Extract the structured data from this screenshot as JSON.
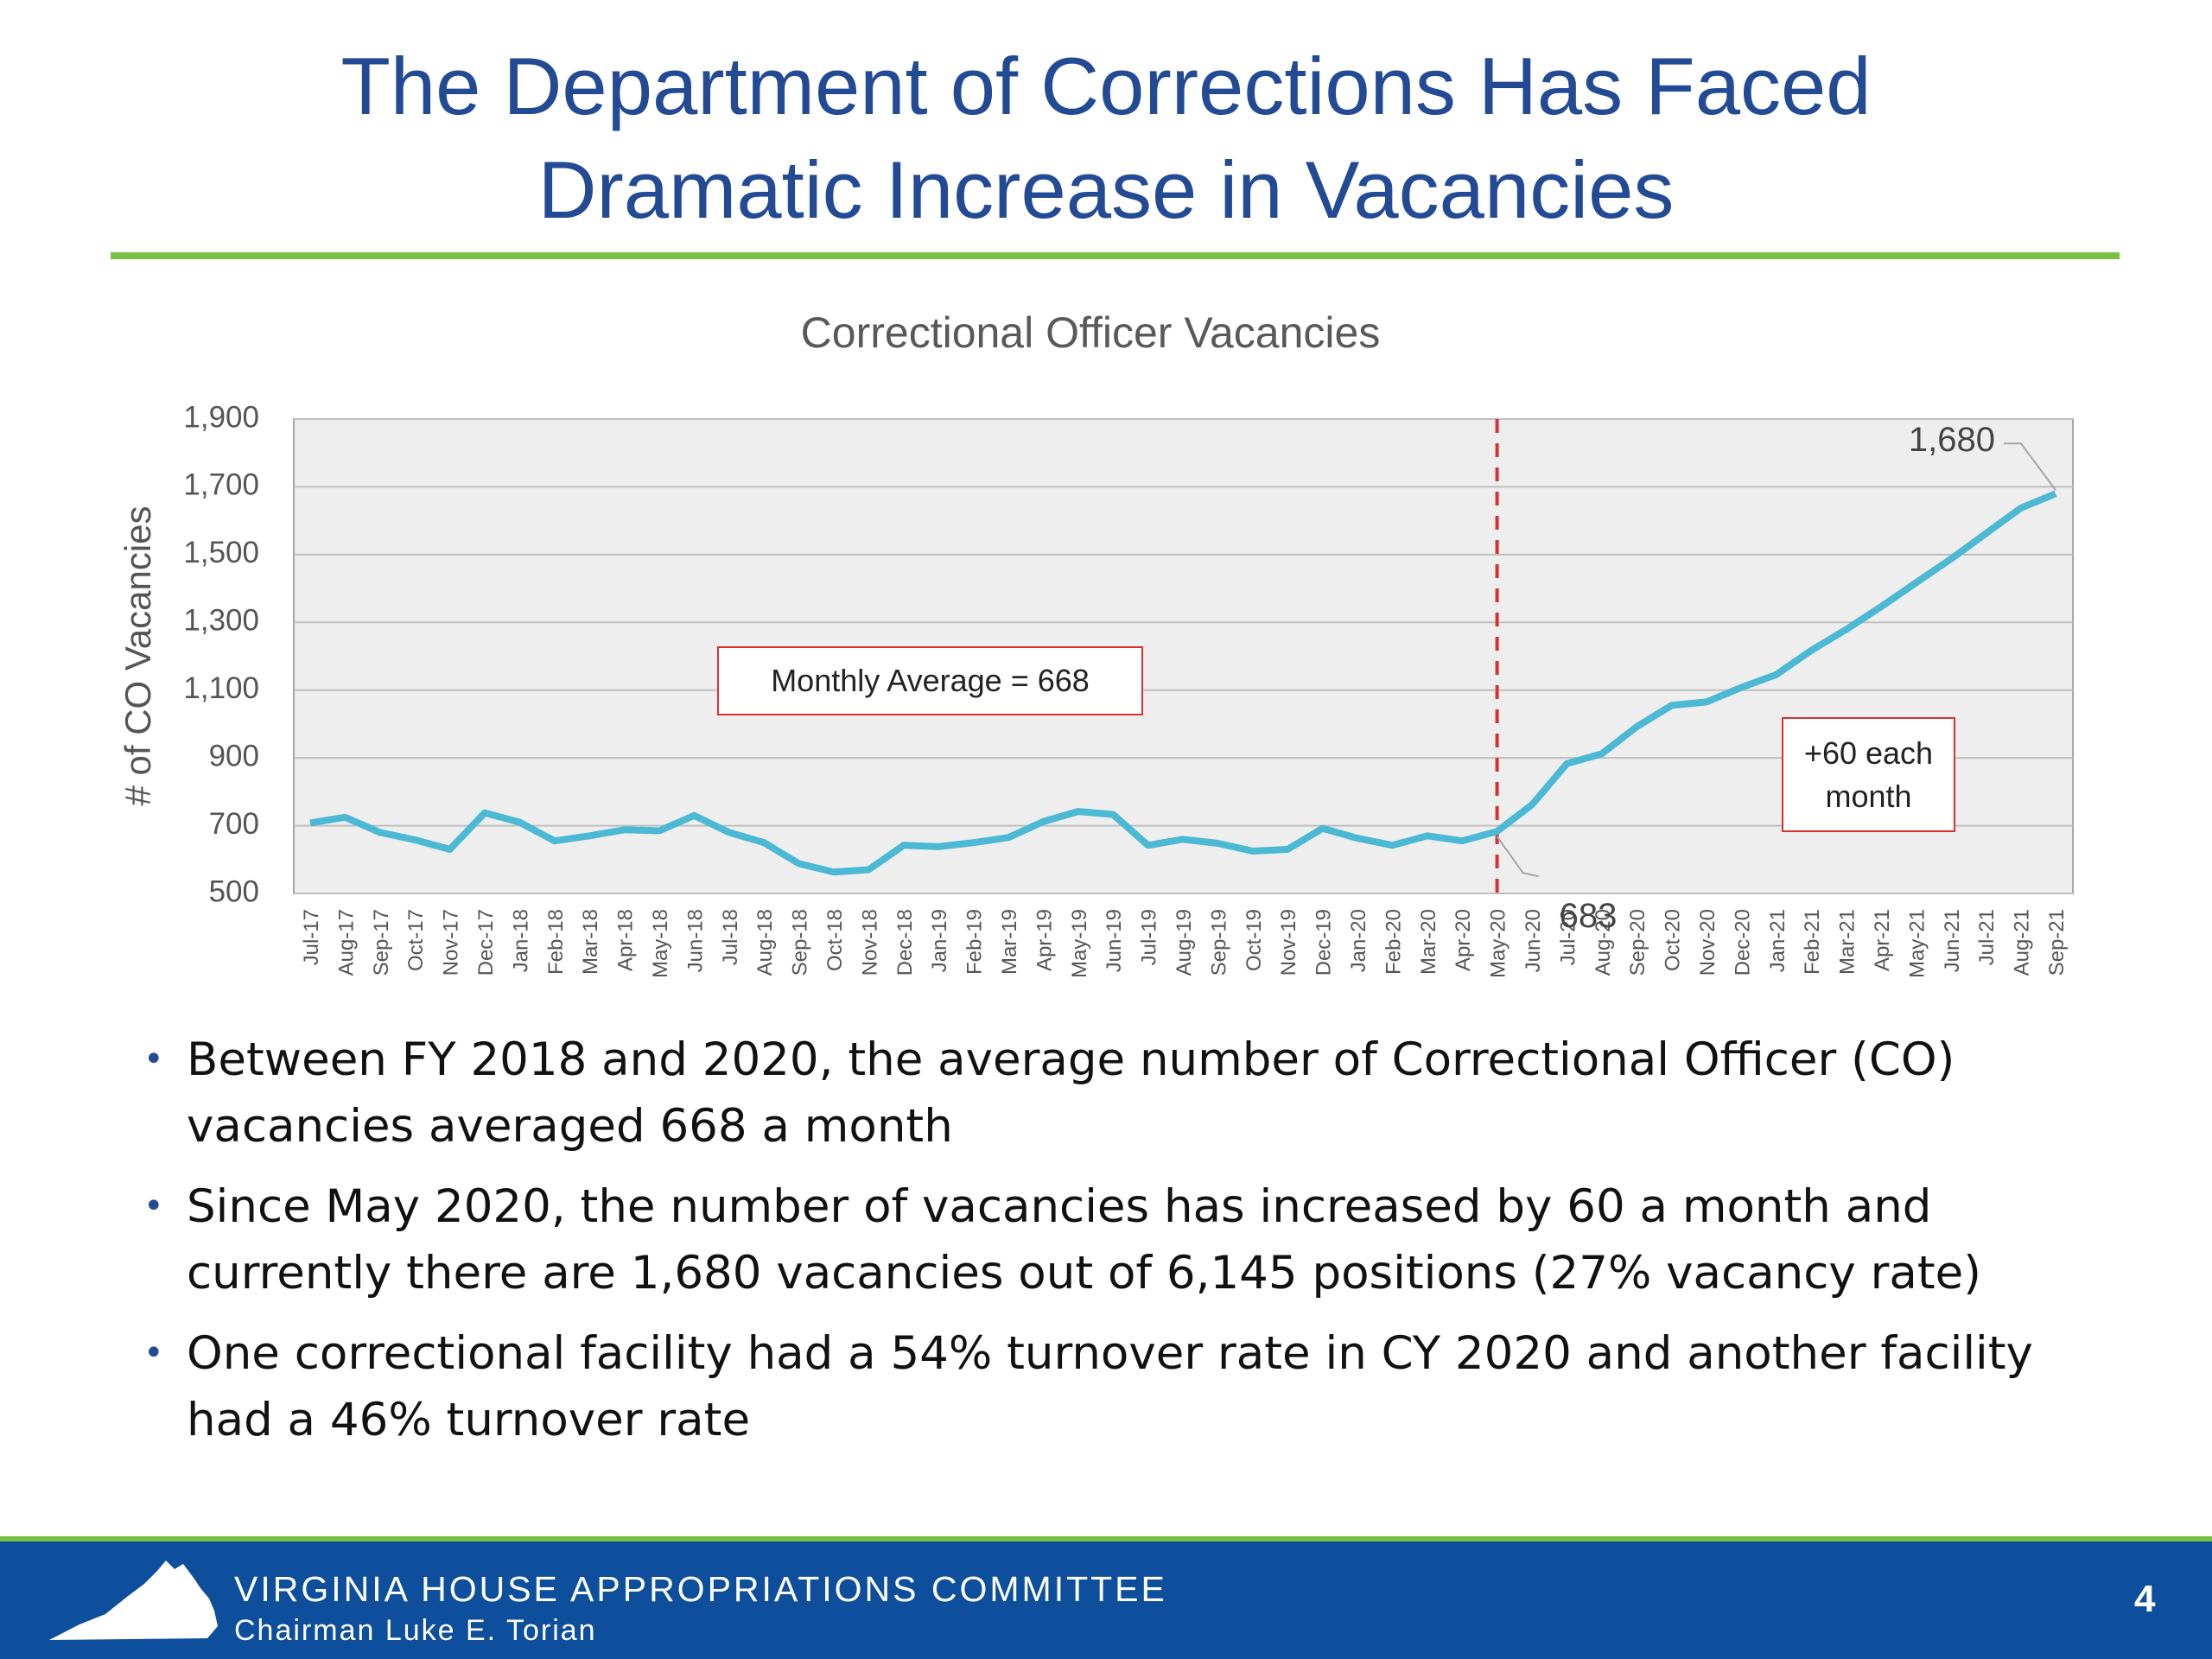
{
  "slide_title": "The Department of Corrections Has Faced Dramatic Increase in Vacancies",
  "chart_data": {
    "type": "line",
    "title": "Correctional Officer Vacancies",
    "y_label": "# of CO Vacancies",
    "categories": [
      "Jul-17",
      "Aug-17",
      "Sep-17",
      "Oct-17",
      "Nov-17",
      "Dec-17",
      "Jan-18",
      "Feb-18",
      "Mar-18",
      "Apr-18",
      "May-18",
      "Jun-18",
      "Jul-18",
      "Aug-18",
      "Sep-18",
      "Oct-18",
      "Nov-18",
      "Dec-18",
      "Jan-19",
      "Feb-19",
      "Mar-19",
      "Apr-19",
      "May-19",
      "Jun-19",
      "Jul-19",
      "Aug-19",
      "Sep-19",
      "Oct-19",
      "Nov-19",
      "Dec-19",
      "Jan-20",
      "Feb-20",
      "Mar-20",
      "Apr-20",
      "May-20",
      "Jun-20",
      "Jul-20",
      "Aug-20",
      "Sep-20",
      "Oct-20",
      "Nov-20",
      "Dec-20",
      "Jan-21",
      "Feb-21",
      "Mar-21",
      "Apr-21",
      "May-21",
      "Jun-21",
      "Jul-21",
      "Aug-21",
      "Sep-21"
    ],
    "values": [
      708,
      725,
      680,
      658,
      630,
      738,
      710,
      655,
      670,
      688,
      685,
      730,
      680,
      650,
      588,
      563,
      570,
      642,
      638,
      650,
      665,
      712,
      742,
      733,
      642,
      660,
      648,
      625,
      630,
      692,
      663,
      642,
      670,
      655,
      683,
      762,
      883,
      912,
      992,
      1055,
      1065,
      1108,
      1146,
      1217,
      1279,
      1346,
      1417,
      1487,
      1562,
      1637,
      1680
    ],
    "value_labels": [
      null,
      null,
      null,
      null,
      null,
      null,
      null,
      null,
      null,
      null,
      null,
      null,
      null,
      null,
      null,
      null,
      null,
      null,
      null,
      null,
      null,
      null,
      null,
      null,
      null,
      null,
      null,
      null,
      null,
      null,
      null,
      null,
      null,
      null,
      "683",
      null,
      null,
      null,
      null,
      null,
      null,
      null,
      null,
      null,
      null,
      null,
      null,
      null,
      null,
      null,
      "1,680"
    ],
    "color": "#4bb8d4",
    "ylim": [
      500,
      1900
    ],
    "yticks": [
      {
        "value": 500,
        "label": "500"
      },
      {
        "value": 700,
        "label": "700"
      },
      {
        "value": 900,
        "label": "900"
      },
      {
        "value": 1100,
        "label": "1,100"
      },
      {
        "value": 1300,
        "label": "1,300"
      },
      {
        "value": 1500,
        "label": "1,500"
      },
      {
        "value": 1700,
        "label": "1,700"
      },
      {
        "value": 1900,
        "label": "1,900"
      }
    ],
    "grid": true,
    "annotations": [
      "Monthly Average = 668",
      "+60 each month"
    ]
  },
  "bullets": [
    "Between FY 2018 and 2020, the average number of Correctional Officer (CO) vacancies averaged 668 a month",
    "Since May 2020, the number of vacancies has increased by 60 a month and currently there are 1,680 vacancies out of 6,145 positions (27% vacancy rate)",
    "One correctional facility had a 54% turnover rate in CY 2020 and another facility had a 46% turnover rate"
  ],
  "footer": {
    "organization": "VIRGINIA HOUSE APPROPRIATIONS COMMITTEE",
    "chairman": "Chairman Luke E. Torian",
    "page": "4"
  }
}
